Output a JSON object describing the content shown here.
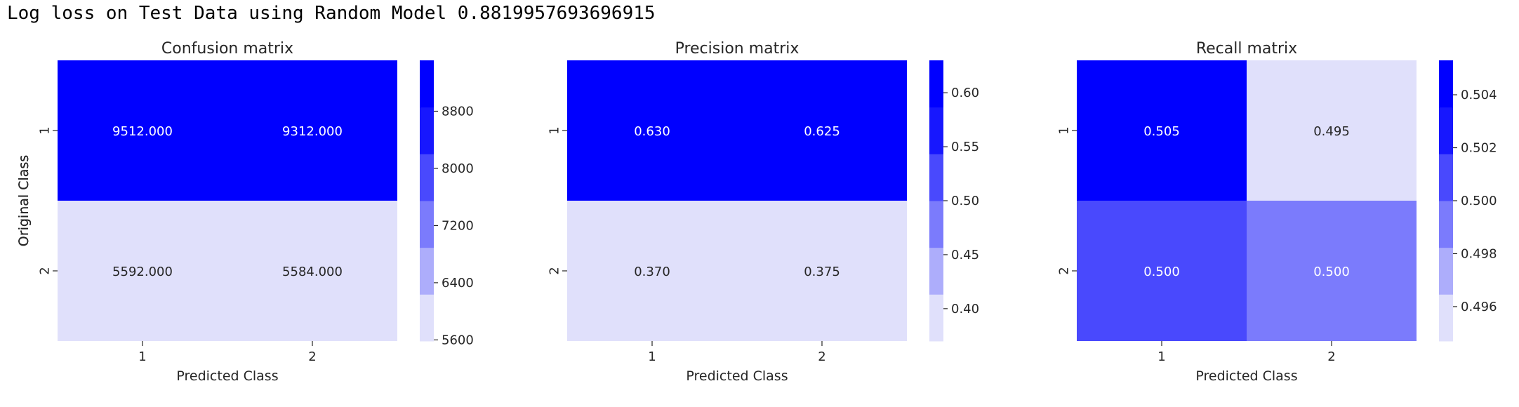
{
  "header": {
    "text": "Log loss on Test Data using Random Model 0.8819957693696915"
  },
  "palette": [
    "#e0e0fb",
    "#adadfb",
    "#7b7bfc",
    "#4949fd",
    "#1717fe",
    "#0000ff"
  ],
  "chart_data": [
    {
      "type": "heatmap",
      "title": "Confusion matrix",
      "xlabel": "Predicted Class",
      "ylabel": "Original Class",
      "row_labels": [
        "1",
        "2"
      ],
      "col_labels": [
        "1",
        "2"
      ],
      "values": [
        [
          "9512.000",
          "9312.000"
        ],
        [
          "5592.000",
          "5584.000"
        ]
      ],
      "cell_colors": [
        [
          "#0000ff",
          "#0000ff"
        ],
        [
          "#e0e0fb",
          "#e0e0fb"
        ]
      ],
      "colorbar": {
        "min": 5584,
        "max": 9512,
        "ticks": [
          {
            "value": 8800,
            "label": "8800"
          },
          {
            "value": 8000,
            "label": "8000"
          },
          {
            "value": 7200,
            "label": "7200"
          },
          {
            "value": 6400,
            "label": "6400"
          },
          {
            "value": 5600,
            "label": "5600"
          }
        ]
      }
    },
    {
      "type": "heatmap",
      "title": "Precision matrix",
      "xlabel": "Predicted Class",
      "ylabel": "Original Class",
      "row_labels": [
        "1",
        "2"
      ],
      "col_labels": [
        "1",
        "2"
      ],
      "values": [
        [
          "0.630",
          "0.625"
        ],
        [
          "0.370",
          "0.375"
        ]
      ],
      "cell_colors": [
        [
          "#0000ff",
          "#0000ff"
        ],
        [
          "#e0e0fb",
          "#e0e0fb"
        ]
      ],
      "colorbar": {
        "min": 0.37,
        "max": 0.63,
        "ticks": [
          {
            "value": 0.6,
            "label": "0.60"
          },
          {
            "value": 0.55,
            "label": "0.55"
          },
          {
            "value": 0.5,
            "label": "0.50"
          },
          {
            "value": 0.45,
            "label": "0.45"
          },
          {
            "value": 0.4,
            "label": "0.40"
          }
        ]
      }
    },
    {
      "type": "heatmap",
      "title": "Recall matrix",
      "xlabel": "Predicted Class",
      "ylabel": "Original Class",
      "row_labels": [
        "1",
        "2"
      ],
      "col_labels": [
        "1",
        "2"
      ],
      "values": [
        [
          "0.505",
          "0.495"
        ],
        [
          "0.500",
          "0.500"
        ]
      ],
      "cell_colors": [
        [
          "#0000ff",
          "#e0e0fb"
        ],
        [
          "#4949fd",
          "#7b7bfc"
        ]
      ],
      "colorbar": {
        "min": 0.4947,
        "max": 0.5053,
        "ticks": [
          {
            "value": 0.504,
            "label": "0.504"
          },
          {
            "value": 0.502,
            "label": "0.502"
          },
          {
            "value": 0.5,
            "label": "0.500"
          },
          {
            "value": 0.498,
            "label": "0.498"
          },
          {
            "value": 0.496,
            "label": "0.496"
          }
        ]
      }
    }
  ]
}
